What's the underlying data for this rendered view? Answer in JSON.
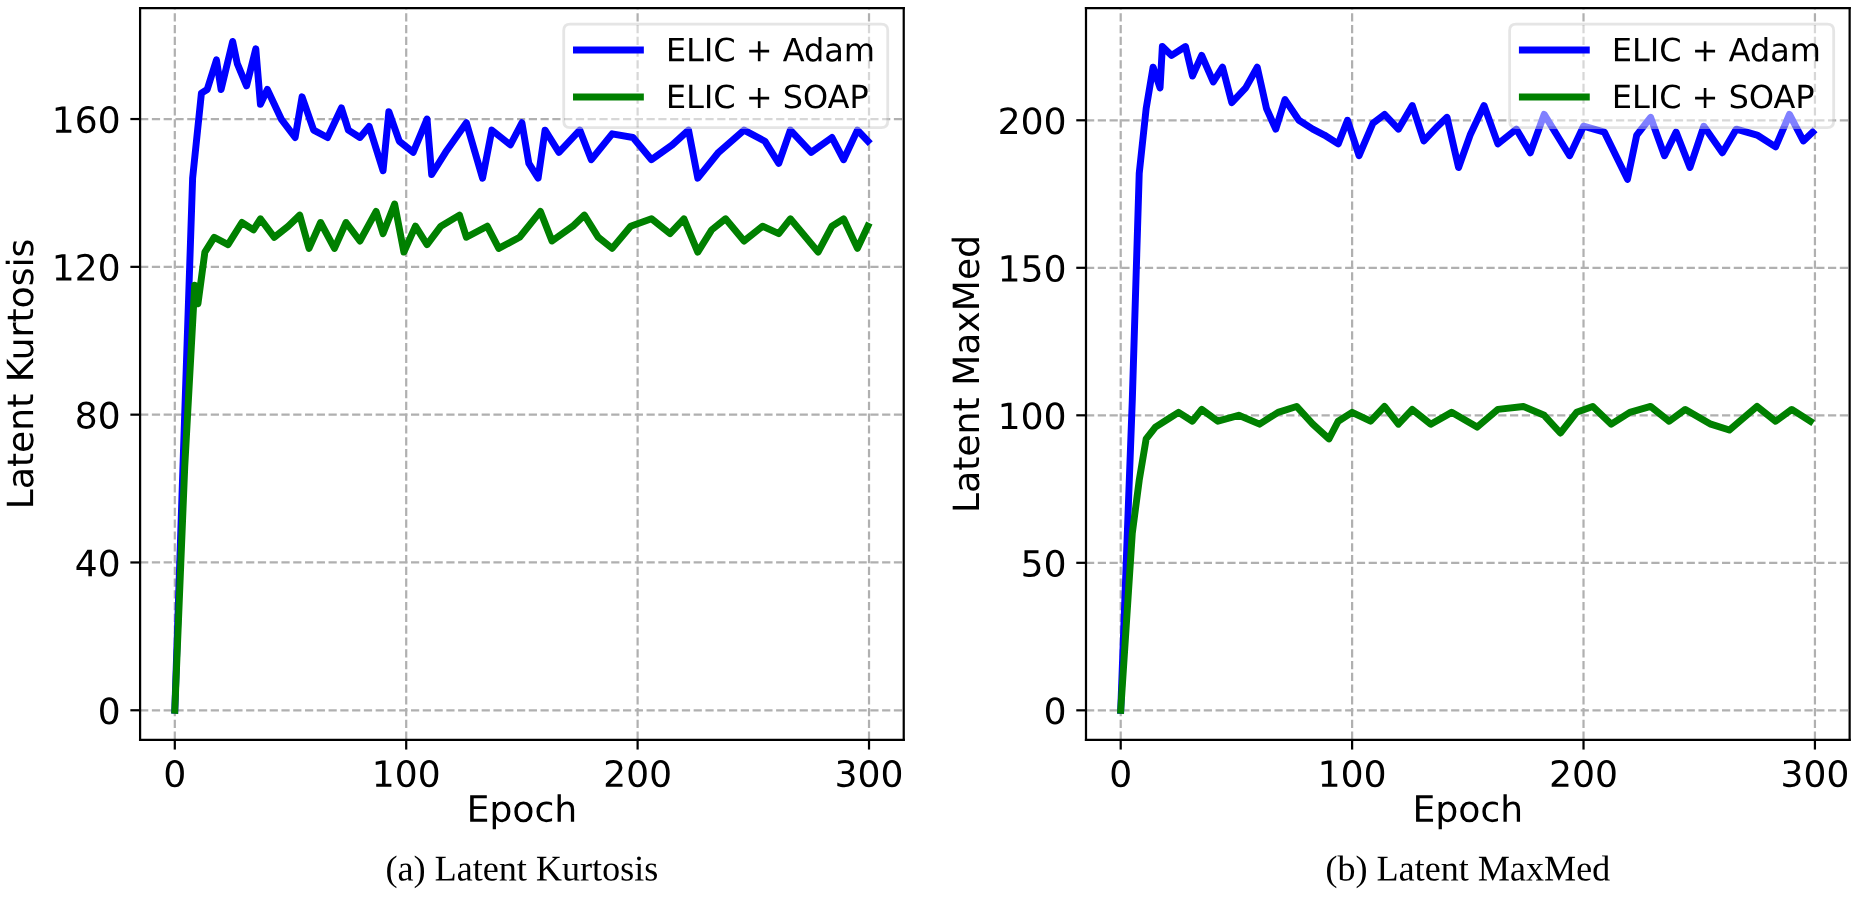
{
  "chart_data": [
    {
      "type": "line",
      "title": "(a) Latent Kurtosis",
      "xlabel": "Epoch",
      "ylabel": "Latent Kurtosis",
      "xlim": [
        -15,
        315
      ],
      "ylim": [
        -8,
        190
      ],
      "xticks": [
        0,
        100,
        200,
        300
      ],
      "yticks": [
        0,
        40,
        80,
        120,
        160
      ],
      "grid": true,
      "legend": "top right",
      "line_style": "solid",
      "series": [
        {
          "name": "ELIC + Adam",
          "color": "#0000ff",
          "x": [
            0,
            7.7,
            11.5,
            14,
            18,
            20,
            25,
            27,
            31,
            35,
            37,
            40,
            46,
            52,
            55,
            60,
            66,
            72,
            75,
            80,
            84,
            90,
            92.5,
            97,
            103,
            109,
            111,
            117,
            126,
            133,
            137,
            145,
            150,
            153,
            157,
            160,
            166,
            175,
            180,
            189,
            198,
            206,
            215,
            222,
            226,
            235,
            246,
            255,
            261,
            266,
            275,
            284,
            289,
            295,
            299.5
          ],
          "values": [
            0,
            144,
            167,
            168,
            176,
            168,
            181,
            175,
            169,
            179,
            164,
            168,
            160,
            155,
            166,
            157,
            155,
            163,
            157,
            155,
            158,
            146,
            162,
            154,
            151,
            160,
            145,
            151,
            159,
            144,
            157,
            153,
            159,
            148,
            144,
            157,
            151,
            157,
            149,
            156,
            155,
            149,
            153,
            157,
            144,
            151,
            157,
            154,
            148,
            157,
            151,
            155,
            149,
            157,
            154
          ]
        },
        {
          "name": "ELIC + SOAP",
          "color": "#008000",
          "x": [
            0,
            4.3,
            8.6,
            10,
            13,
            17,
            23,
            29,
            34,
            37,
            43,
            49,
            54,
            58,
            63,
            69,
            74,
            80,
            87,
            90,
            95,
            99,
            104,
            109,
            115,
            123,
            126,
            135,
            140,
            149,
            158,
            163,
            172,
            177,
            183,
            189,
            197,
            206,
            214,
            220,
            226,
            232,
            238,
            246,
            254,
            261,
            266,
            278,
            284,
            289,
            295,
            299.5
          ],
          "values": [
            0,
            66,
            115,
            110,
            124,
            128,
            126,
            132,
            130,
            133,
            128,
            131,
            134,
            125,
            132,
            125,
            132,
            127,
            135,
            129,
            137,
            124,
            131,
            126,
            131,
            134,
            128,
            131,
            125,
            128,
            135,
            127,
            131,
            134,
            128,
            125,
            131,
            133,
            129,
            133,
            124,
            130,
            133,
            127,
            131,
            129,
            133,
            124,
            131,
            133,
            125,
            131
          ]
        }
      ]
    },
    {
      "type": "line",
      "title": "(b) Latent MaxMed",
      "xlabel": "Epoch",
      "ylabel": "Latent MaxMed",
      "xlim": [
        -15,
        315
      ],
      "ylim": [
        -10,
        238
      ],
      "xticks": [
        0,
        100,
        200,
        300
      ],
      "yticks": [
        0,
        50,
        100,
        150,
        200
      ],
      "grid": true,
      "legend": "top right",
      "line_style": "solid",
      "series": [
        {
          "name": "ELIC + Adam",
          "color": "#0000ff",
          "x": [
            0,
            5,
            8,
            11,
            14,
            17,
            18,
            22,
            28,
            31,
            35,
            40,
            44,
            48,
            54,
            59,
            63,
            67,
            71,
            77,
            83,
            88,
            94,
            98,
            103,
            109,
            114,
            120,
            126,
            131,
            137,
            141,
            146,
            151,
            157,
            163,
            171,
            177,
            183,
            194,
            200,
            209,
            219,
            223,
            229,
            235,
            240,
            246,
            252,
            260,
            266,
            275,
            283,
            289,
            295,
            299
          ],
          "values": [
            0,
            105,
            182,
            204,
            218,
            211,
            225,
            222,
            225,
            215,
            222,
            213,
            218,
            206,
            211,
            218,
            204,
            197,
            207,
            200,
            197,
            195,
            192,
            200,
            188,
            199,
            202,
            197,
            205,
            193,
            198,
            201,
            184,
            195,
            205,
            192,
            197,
            189,
            202,
            188,
            198,
            196,
            180,
            195,
            201,
            188,
            196,
            184,
            198,
            189,
            197,
            195,
            191,
            202,
            193,
            196
          ]
        },
        {
          "name": "ELIC + SOAP",
          "color": "#008000",
          "x": [
            0,
            5,
            8,
            11,
            15,
            21,
            25,
            31,
            35,
            42,
            51,
            60,
            68,
            76,
            83,
            90,
            94,
            100,
            108,
            114,
            120,
            126,
            134,
            143,
            154,
            163,
            174,
            183,
            190,
            197,
            204,
            212,
            220,
            229,
            237,
            244,
            255,
            263,
            275,
            283,
            290,
            298
          ],
          "values": [
            0,
            60,
            78,
            92,
            96,
            99,
            101,
            98,
            102,
            98,
            100,
            97,
            101,
            103,
            97,
            92,
            98,
            101,
            98,
            103,
            97,
            102,
            97,
            101,
            96,
            102,
            103,
            100,
            94,
            101,
            103,
            97,
            101,
            103,
            98,
            102,
            97,
            95,
            103,
            98,
            102,
            98
          ]
        }
      ]
    }
  ]
}
